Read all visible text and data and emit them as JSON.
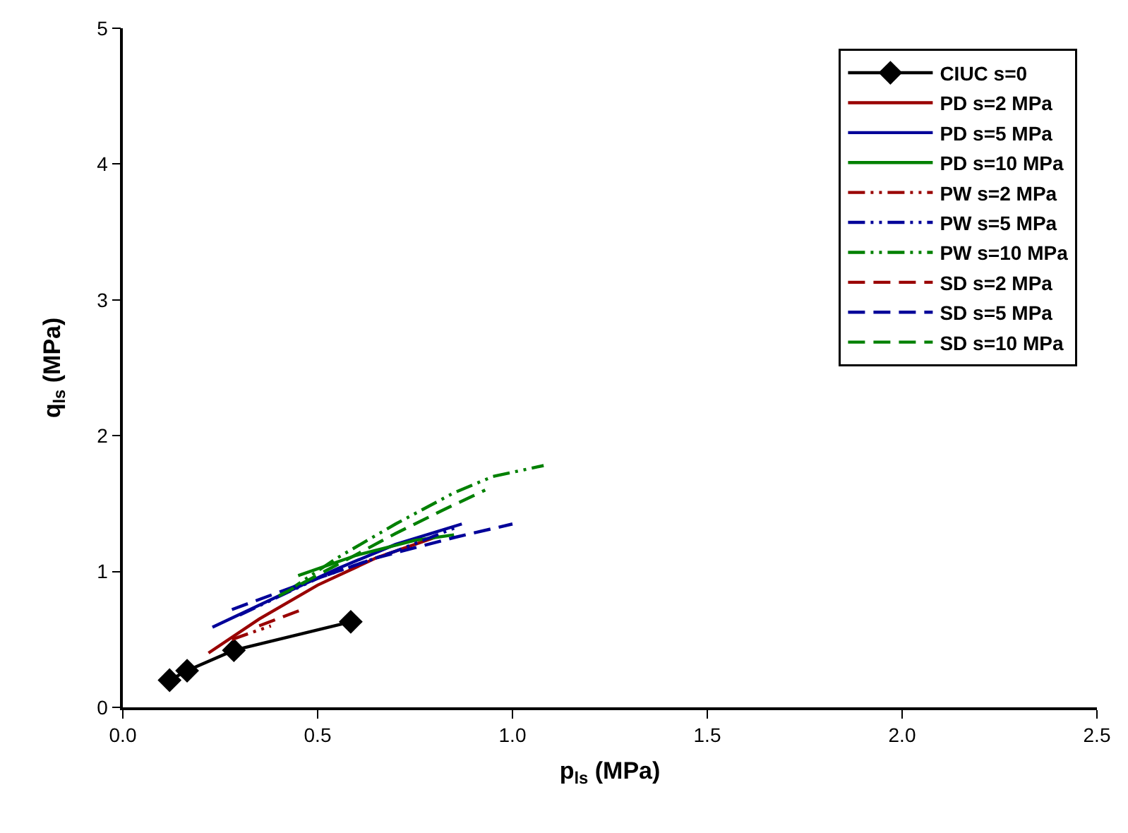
{
  "chart_data": {
    "type": "line",
    "xlabel": "p$_{ls}$ (MPa)",
    "ylabel": "q$_{ls}$ (MPa)",
    "xlim": [
      0,
      2.5
    ],
    "xticks": [
      {
        "value": 0,
        "label": "0.0"
      },
      {
        "value": 0.5,
        "label": "0.5"
      },
      {
        "value": 1,
        "label": "1.0"
      },
      {
        "value": 1.5,
        "label": "1.5"
      },
      {
        "value": 2,
        "label": "2.0"
      },
      {
        "value": 2.5,
        "label": "2.5"
      }
    ],
    "ylim": [
      0,
      5
    ],
    "yticks": [
      0,
      1,
      2,
      3,
      4,
      5
    ],
    "grid": false,
    "legend": "top right",
    "series": [
      {
        "name": "CIUC s=0",
        "color": "#000000",
        "marker": "diamond",
        "line_style": "solid",
        "x": [
          0.12,
          0.165,
          0.285,
          0.585
        ],
        "values": [
          0.2,
          0.27,
          0.42,
          0.63
        ]
      },
      {
        "name": "PD s=2 MPa",
        "color": "#990000",
        "marker": "none",
        "line_style": "solid",
        "x": [
          0.22,
          0.35,
          0.5,
          0.65,
          0.8
        ],
        "values": [
          0.4,
          0.65,
          0.9,
          1.1,
          1.25
        ]
      },
      {
        "name": "PD s=5 MPa",
        "color": "#000099",
        "marker": "none",
        "line_style": "solid",
        "x": [
          0.23,
          0.4,
          0.55,
          0.7,
          0.87
        ],
        "values": [
          0.59,
          0.82,
          1.02,
          1.2,
          1.35
        ]
      },
      {
        "name": "PD s=10 MPa",
        "color": "#008000",
        "marker": "none",
        "line_style": "solid",
        "x": [
          0.45,
          0.6,
          0.75,
          0.85
        ],
        "values": [
          0.97,
          1.12,
          1.23,
          1.27
        ]
      },
      {
        "name": "PW s=2 MPa",
        "color": "#990000",
        "marker": "none",
        "line_style": "dashdotdot",
        "x": [
          0.28,
          0.38
        ],
        "values": [
          0.5,
          0.6
        ]
      },
      {
        "name": "PW s=5 MPa",
        "color": "#000099",
        "marker": "none",
        "line_style": "dashdotdot",
        "x": [
          0.3,
          0.5,
          0.7,
          0.86
        ],
        "values": [
          0.68,
          0.95,
          1.15,
          1.33
        ]
      },
      {
        "name": "PW s=10 MPa",
        "color": "#008000",
        "marker": "none",
        "line_style": "dashdotdot",
        "x": [
          0.42,
          0.55,
          0.7,
          0.85,
          0.95,
          1.08
        ],
        "values": [
          0.85,
          1.1,
          1.35,
          1.58,
          1.7,
          1.78
        ]
      },
      {
        "name": "SD s=2 MPa",
        "color": "#990000",
        "marker": "none",
        "line_style": "dashed",
        "x": [
          0.35,
          0.46
        ],
        "values": [
          0.6,
          0.72
        ]
      },
      {
        "name": "SD s=5 MPa",
        "color": "#000099",
        "marker": "none",
        "line_style": "dashed",
        "x": [
          0.28,
          0.45,
          0.65,
          0.85,
          1.0
        ],
        "values": [
          0.72,
          0.9,
          1.1,
          1.25,
          1.35
        ]
      },
      {
        "name": "SD s=10 MPa",
        "color": "#008000",
        "marker": "none",
        "line_style": "dashed",
        "x": [
          0.4,
          0.55,
          0.7,
          0.82,
          0.93
        ],
        "values": [
          0.82,
          1.05,
          1.28,
          1.45,
          1.6
        ]
      }
    ]
  }
}
